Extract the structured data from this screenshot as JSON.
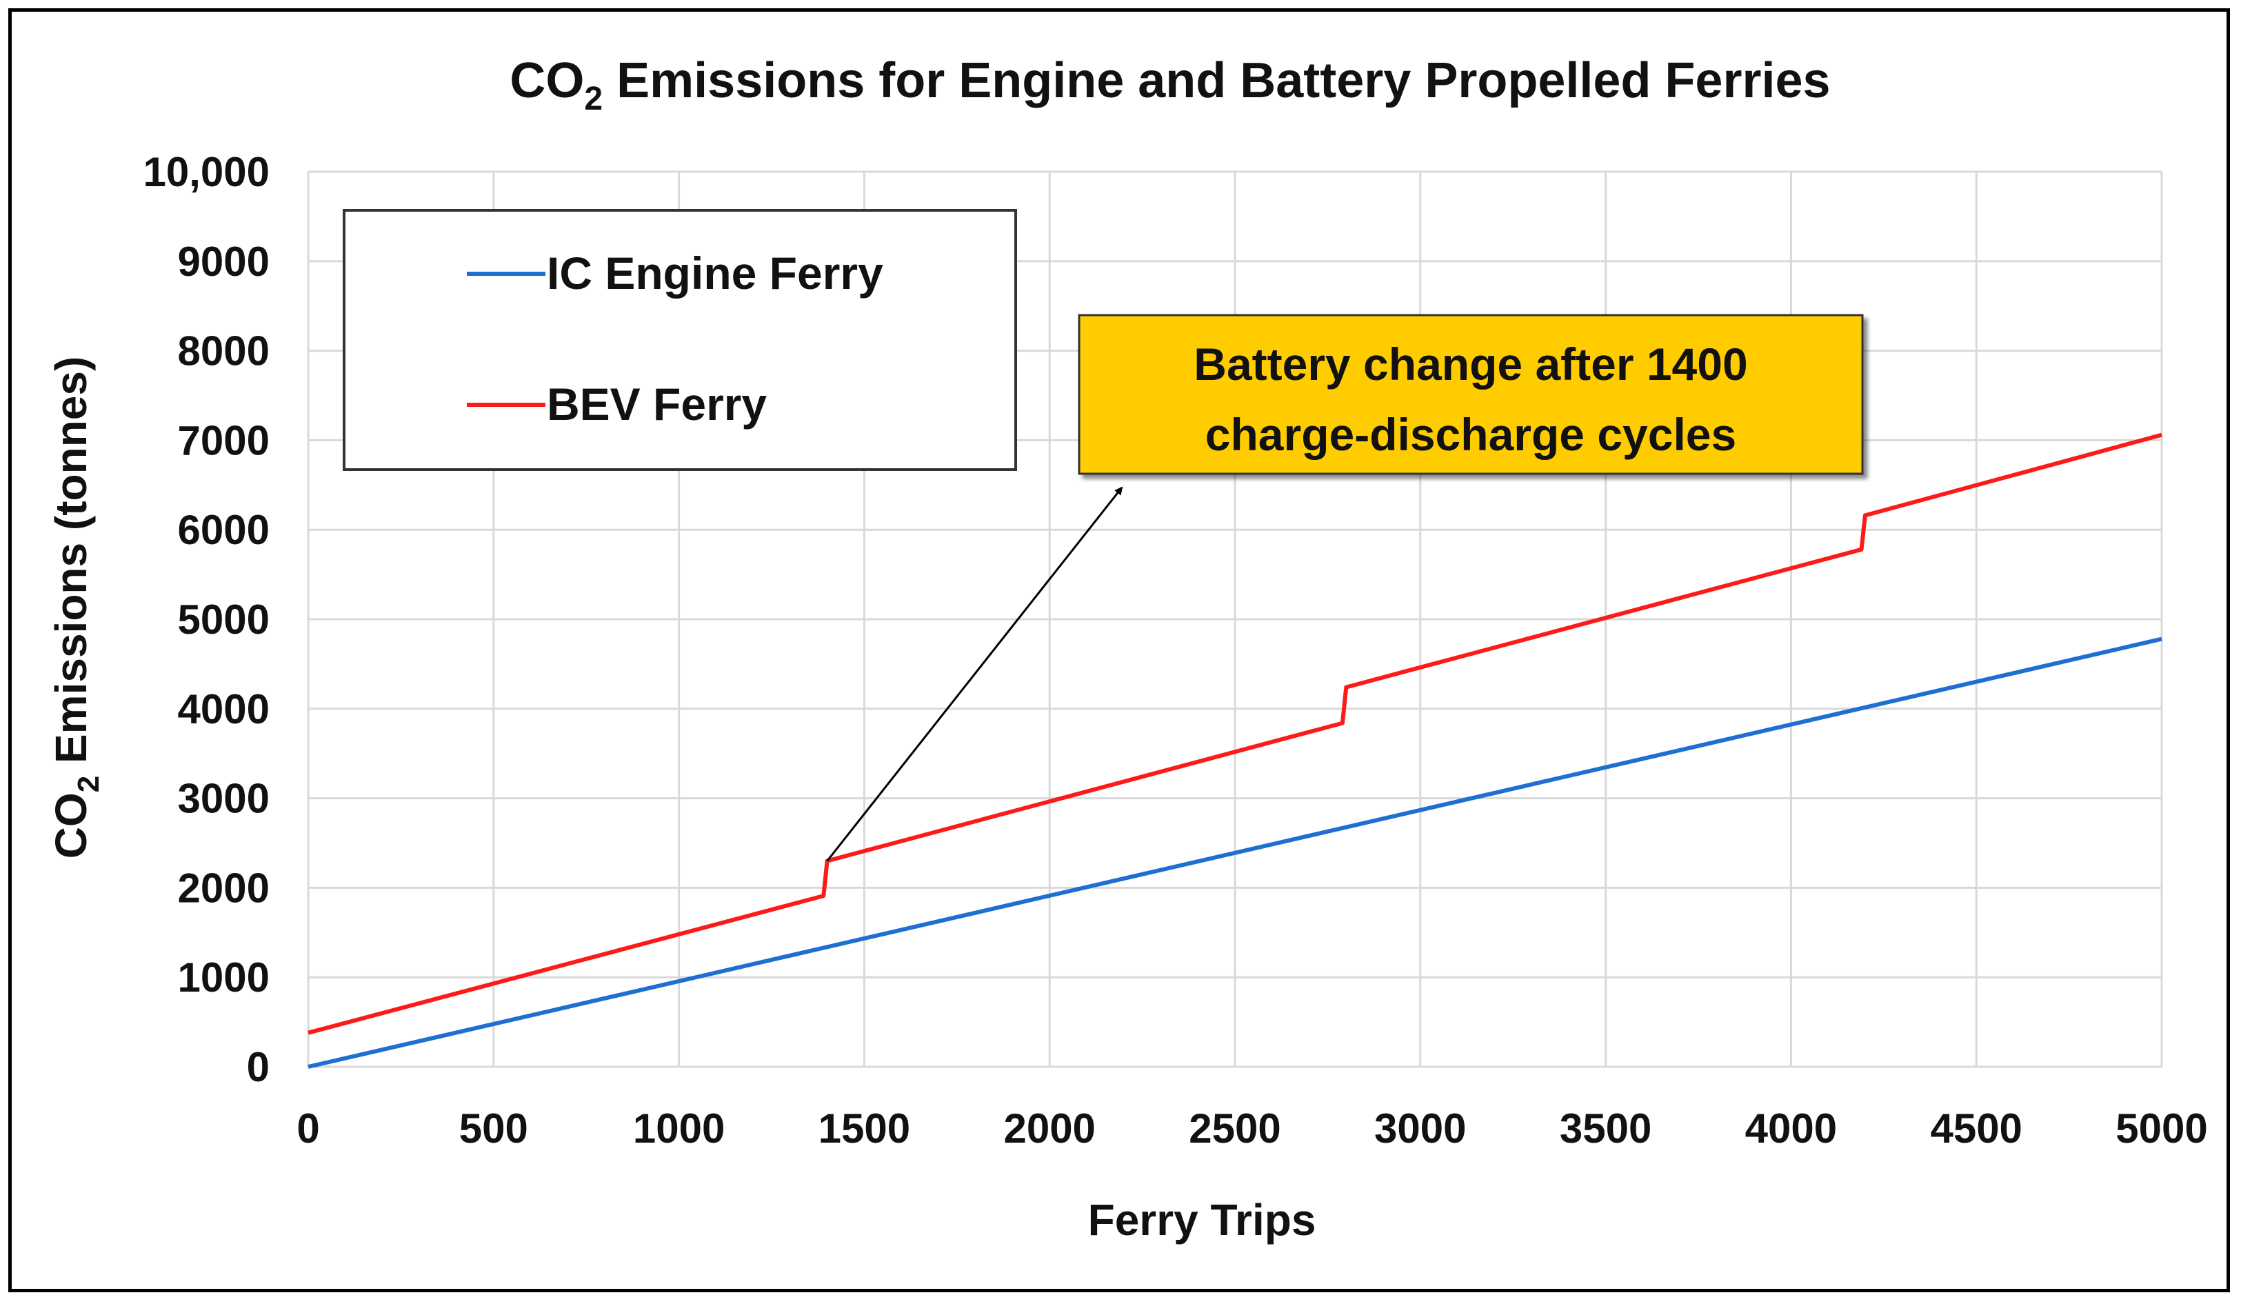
{
  "chart_data": {
    "type": "line",
    "title": {
      "prefix": "CO",
      "subscript": "2",
      "suffix": " Emissions for Engine and Battery Propelled Ferries"
    },
    "xlabel": "Ferry Trips",
    "ylabel": {
      "prefix": "CO",
      "subscript": "2",
      "suffix": " Emissions (tonnes)"
    },
    "xlim": [
      0,
      5000
    ],
    "ylim": [
      0,
      10000
    ],
    "x_ticks": [
      0,
      500,
      1000,
      1500,
      2000,
      2500,
      3000,
      3500,
      4000,
      4500,
      5000
    ],
    "x_tick_labels": [
      "0",
      "500",
      "1000",
      "1500",
      "2000",
      "2500",
      "3000",
      "3500",
      "4000",
      "4500",
      "5000"
    ],
    "y_ticks": [
      0,
      1000,
      2000,
      3000,
      4000,
      5000,
      6000,
      7000,
      8000,
      9000,
      10000
    ],
    "y_tick_labels": [
      "0",
      "1000",
      "2000",
      "3000",
      "4000",
      "5000",
      "6000",
      "7000",
      "8000",
      "9000",
      "10,000"
    ],
    "grid": true,
    "legend_position": "top-left",
    "series": [
      {
        "name": "IC Engine Ferry",
        "color": "#1f6fd1",
        "points": [
          [
            0,
            0
          ],
          [
            5000,
            4780
          ]
        ]
      },
      {
        "name": "BEV Ferry",
        "color": "#ff1a1a",
        "points": [
          [
            0,
            380
          ],
          [
            1390,
            1910
          ],
          [
            1400,
            2300
          ],
          [
            2790,
            3840
          ],
          [
            2800,
            4240
          ],
          [
            4190,
            5780
          ],
          [
            4200,
            6160
          ],
          [
            5000,
            7060
          ]
        ]
      }
    ],
    "annotation": {
      "lines": [
        "Battery  change after 1400",
        "charge-discharge cycles"
      ],
      "background": "#ffcc00",
      "arrow_from": [
        1400,
        2300
      ]
    }
  }
}
